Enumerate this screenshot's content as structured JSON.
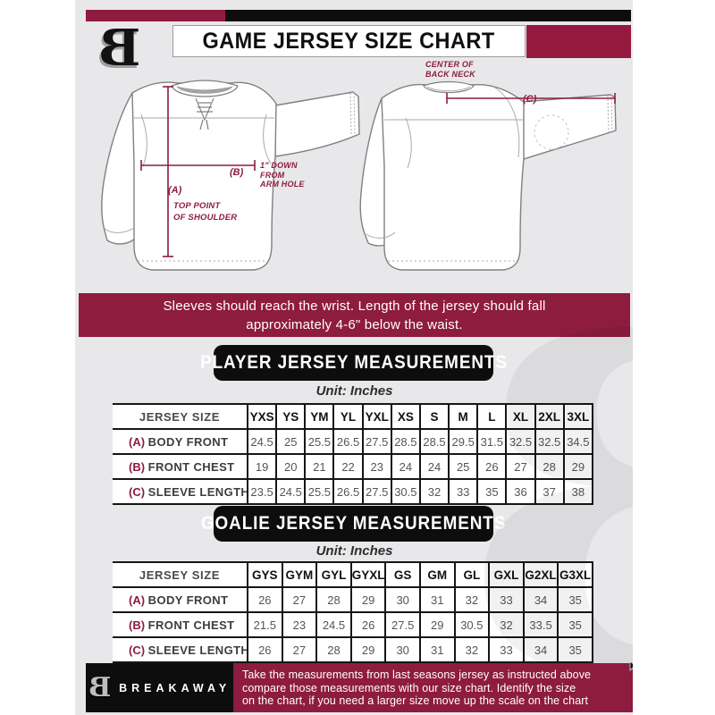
{
  "colors": {
    "maroon": "#8e1c3e",
    "bar_black": "#0d0d0d",
    "background": "#e8e8ea"
  },
  "header": {
    "logo_char": "B",
    "title": "GAME JERSEY SIZE CHART"
  },
  "diagram": {
    "front": {
      "a_key": "(A)",
      "a_note_lines": [
        "TOP POINT",
        "OF SHOULDER"
      ],
      "b_key": "(B)",
      "b_note_lines": [
        "1\" DOWN",
        "FROM",
        "ARM HOLE"
      ]
    },
    "back": {
      "c_key": "(C)",
      "neck_note_lines": [
        "CENTER OF",
        "BACK NECK"
      ]
    }
  },
  "banner": {
    "lines": [
      "Sleeves should reach the wrist. Length of the jersey should fall",
      "approximately 4-6\" below the waist."
    ]
  },
  "player": {
    "heading": "PLAYER JERSEY MEASUREMENTS",
    "unit": "Unit: Inches",
    "size_header": "JERSEY SIZE",
    "sizes": [
      "YXS",
      "YS",
      "YM",
      "YL",
      "YXL",
      "XS",
      "S",
      "M",
      "L",
      "XL",
      "2XL",
      "3XL"
    ],
    "rows": [
      {
        "key": "(A)",
        "label": "BODY FRONT",
        "values": [
          "24.5",
          "25",
          "25.5",
          "26.5",
          "27.5",
          "28.5",
          "28.5",
          "29.5",
          "31.5",
          "32.5",
          "32.5",
          "34.5"
        ]
      },
      {
        "key": "(B)",
        "label": "FRONT CHEST",
        "values": [
          "19",
          "20",
          "21",
          "22",
          "23",
          "24",
          "24",
          "25",
          "26",
          "27",
          "28",
          "29"
        ]
      },
      {
        "key": "(C)",
        "label": "SLEEVE LENGTH",
        "values": [
          "23.5",
          "24.5",
          "25.5",
          "26.5",
          "27.5",
          "30.5",
          "32",
          "33",
          "35",
          "36",
          "37",
          "38"
        ]
      }
    ]
  },
  "goalie": {
    "heading": "GOALIE JERSEY MEASUREMENTS",
    "unit": "Unit: Inches",
    "size_header": "JERSEY SIZE",
    "sizes": [
      "GYS",
      "GYM",
      "GYL",
      "GYXL",
      "GS",
      "GM",
      "GL",
      "GXL",
      "G2XL",
      "G3XL"
    ],
    "rows": [
      {
        "key": "(A)",
        "label": "BODY FRONT",
        "values": [
          "26",
          "27",
          "28",
          "29",
          "30",
          "31",
          "32",
          "33",
          "34",
          "35"
        ]
      },
      {
        "key": "(B)",
        "label": "FRONT CHEST",
        "values": [
          "21.5",
          "23",
          "24.5",
          "26",
          "27.5",
          "29",
          "30.5",
          "32",
          "33.5",
          "35"
        ]
      },
      {
        "key": "(C)",
        "label": "SLEEVE LENGTH",
        "values": [
          "26",
          "27",
          "28",
          "29",
          "30",
          "31",
          "32",
          "33",
          "34",
          "35"
        ]
      }
    ]
  },
  "footer": {
    "logo_char": "B",
    "brand": "BREAKAWAY",
    "lines": [
      "Take the measurements from last seasons jersey as instructed above",
      "compare those measurements  with our size chart. Identify the size",
      "on the chart, if you need a larger size move up the scale on the chart"
    ]
  },
  "watermark_char": "B"
}
